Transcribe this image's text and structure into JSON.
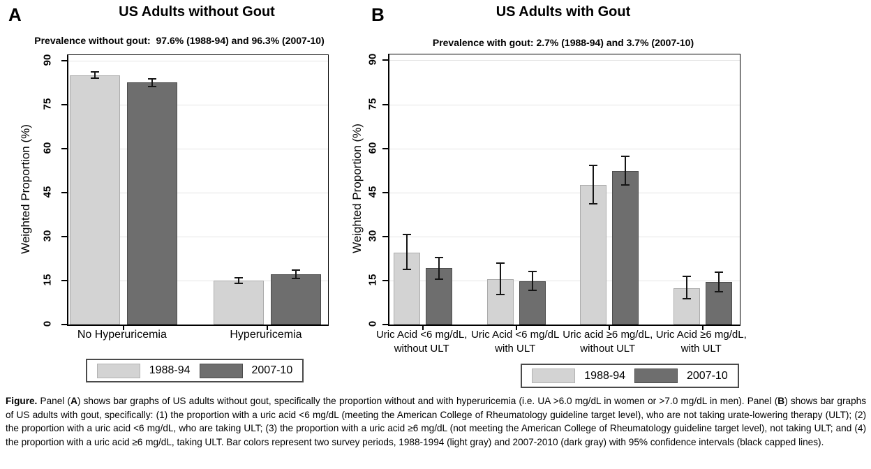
{
  "figure": {
    "panels": [
      {
        "letter": "A"
      },
      {
        "letter": "B"
      }
    ]
  },
  "chart_data": [
    {
      "type": "bar",
      "panel": "A",
      "title": "US Adults without Gout",
      "subtitle": "Prevalence without gout:  97.6% (1988-94) and 96.3% (2007-10)",
      "ylabel": "Weighted Proportion (%)",
      "ylim": [
        0,
        92
      ],
      "yticks": [
        0,
        15,
        30,
        45,
        60,
        75,
        90
      ],
      "grid": true,
      "legend_position": "bottom",
      "categories": [
        "No Hyperuricemia",
        "Hyperuricemia"
      ],
      "series": [
        {
          "name": "1988-94",
          "color": "#d3d3d3",
          "values": [
            85.0,
            15.0
          ],
          "ci_low": [
            84.0,
            13.8
          ],
          "ci_high": [
            86.6,
            16.2
          ]
        },
        {
          "name": "2007-10",
          "color": "#6e6e6e",
          "values": [
            82.6,
            17.2
          ],
          "ci_low": [
            81.0,
            15.5
          ],
          "ci_high": [
            84.1,
            18.9
          ]
        }
      ]
    },
    {
      "type": "bar",
      "panel": "B",
      "title": "US Adults with Gout",
      "subtitle": "Prevalence with gout: 2.7% (1988-94) and 3.7% (2007-10)",
      "ylabel": "Weighted Proportion (%)",
      "ylim": [
        0,
        92
      ],
      "yticks": [
        0,
        15,
        30,
        45,
        60,
        75,
        90
      ],
      "grid": true,
      "legend_position": "bottom",
      "categories": [
        "Uric Acid <6 mg/dL,\nwithout ULT",
        "Uric Acid <6 mg/dL\nwith ULT",
        "Uric acid ≥6 mg/dL,\nwithout ULT",
        "Uric Acid ≥6 mg/dL,\nwith ULT"
      ],
      "series": [
        {
          "name": "1988-94",
          "color": "#d3d3d3",
          "values": [
            24.6,
            15.5,
            47.6,
            12.4
          ],
          "ci_low": [
            18.5,
            10.0,
            41.0,
            8.5
          ],
          "ci_high": [
            31.0,
            21.2,
            54.5,
            16.6
          ]
        },
        {
          "name": "2007-10",
          "color": "#6e6e6e",
          "values": [
            19.2,
            14.7,
            52.3,
            14.5
          ],
          "ci_low": [
            15.1,
            11.5,
            47.3,
            11.0
          ],
          "ci_high": [
            23.0,
            18.2,
            57.5,
            18.0
          ]
        }
      ]
    }
  ],
  "legend": {
    "entries": [
      {
        "label": "1988-94",
        "color": "#d3d3d3"
      },
      {
        "label": "2007-10",
        "color": "#6e6e6e"
      }
    ]
  },
  "caption": {
    "parts": [
      {
        "text": "Figure.",
        "bold": true
      },
      {
        "text": " Panel (",
        "bold": false
      },
      {
        "text": "A",
        "bold": true
      },
      {
        "text": ") shows bar graphs of US adults without gout, specifically the proportion without and with hyperuricemia (i.e. UA >6.0 mg/dL in women or >7.0 mg/dL in men). Panel (",
        "bold": false
      },
      {
        "text": "B",
        "bold": true
      },
      {
        "text": ") shows bar graphs of US adults with gout, specifically: (1) the proportion with a uric acid <6 mg/dL (meeting the American College of Rheumatology guideline target level), who are not taking urate-lowering therapy (ULT); (2) the proportion with a uric acid <6 mg/dL, who are taking ULT; (3) the proportion with a uric acid ≥6 mg/dL (not meeting the American College of Rheumatology guideline target level), not taking ULT; and (4) the proportion with a uric acid ≥6 mg/dL, taking ULT. Bar colors represent two survey periods, 1988-1994 (light gray) and 2007-2010 (dark gray) with 95% confidence intervals (black capped lines).",
        "bold": false
      }
    ]
  }
}
